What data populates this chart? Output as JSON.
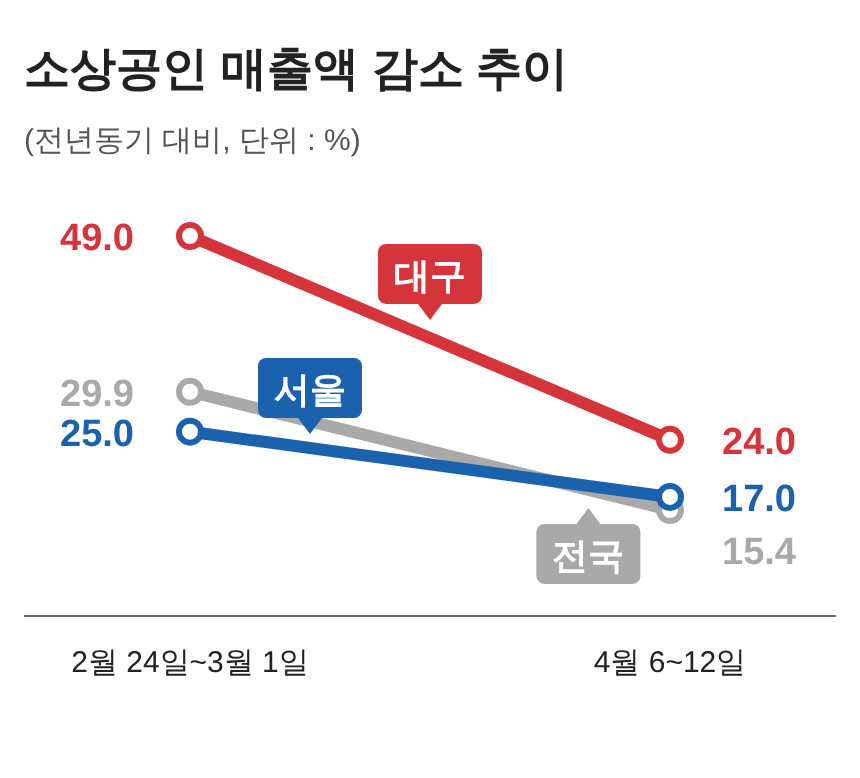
{
  "chart_data": {
    "type": "line",
    "title": "소상공인 매출액 감소 추이",
    "subtitle": "(전년동기 대비, 단위 : %)",
    "categories": [
      "2월 24일~3월 1일",
      "4월 6~12일"
    ],
    "series": [
      {
        "name": "대구",
        "color": "#d6343b",
        "values": [
          49.0,
          24.0
        ],
        "value_labels": [
          "49.0",
          "24.0"
        ]
      },
      {
        "name": "서울",
        "color": "#1b62ae",
        "values": [
          25.0,
          17.0
        ],
        "value_labels": [
          "25.0",
          "17.0"
        ]
      },
      {
        "name": "전국",
        "color": "#a9a9a9",
        "values": [
          29.9,
          15.4
        ],
        "value_labels": [
          "29.9",
          "15.4"
        ]
      }
    ],
    "marker": "circle",
    "line_style": "solid"
  }
}
